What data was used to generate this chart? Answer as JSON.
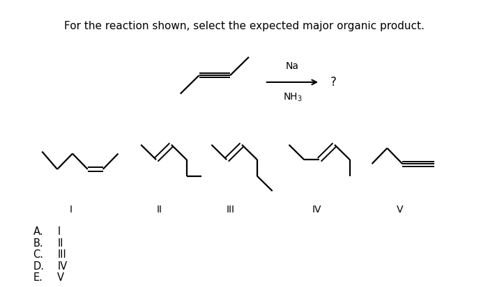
{
  "title": "For the reaction shown, select the expected major organic product.",
  "bg_color": "#ffffff",
  "line_color": "#000000",
  "line_width": 1.6,
  "answer_labels": [
    "A.",
    "B.",
    "C.",
    "D.",
    "E."
  ],
  "answer_values": [
    "I",
    "II",
    "III",
    "IV",
    "V"
  ],
  "romans": [
    "I",
    "II",
    "III",
    "IV",
    "V"
  ]
}
